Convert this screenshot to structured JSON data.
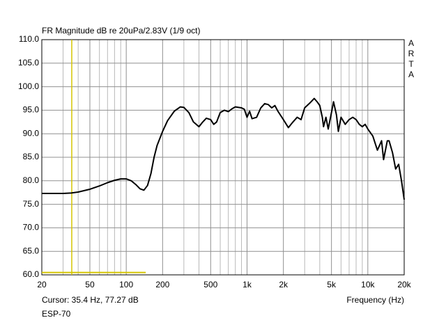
{
  "chart_data": {
    "type": "line",
    "title": "FR Magnitude dB re 20uPa/2.83V (1/9 oct)",
    "side_label": [
      "A",
      "R",
      "T",
      "A"
    ],
    "x_label": "Frequency (Hz)",
    "cursor": {
      "x": 35.4,
      "y": 77.27,
      "label": "Cursor: 35.4 Hz, 77.27 dB",
      "color": "#d4c400"
    },
    "range_marker": {
      "x": [
        20,
        145
      ],
      "y": 60.5,
      "color": "#d4c400"
    },
    "footer": "ESP-70",
    "xlog": true,
    "grid": true,
    "xlim": [
      20,
      20000
    ],
    "ylim": [
      60,
      110
    ],
    "xticks": [
      20,
      50,
      100,
      200,
      500,
      {
        "value": 1000,
        "label": "1k"
      },
      {
        "value": 2000,
        "label": "2k"
      },
      {
        "value": 5000,
        "label": "5k"
      },
      {
        "value": 10000,
        "label": "10k"
      },
      {
        "value": 20000,
        "label": "20k"
      }
    ],
    "xminorticks": [
      30,
      40,
      60,
      70,
      80,
      90,
      300,
      400,
      600,
      700,
      800,
      900,
      3000,
      4000,
      6000,
      7000,
      8000,
      9000
    ],
    "yticks": [
      {
        "value": 60,
        "label": "60.0"
      },
      {
        "value": 65,
        "label": "65.0"
      },
      {
        "value": 70,
        "label": "70.0"
      },
      {
        "value": 75,
        "label": "75.0"
      },
      {
        "value": 80,
        "label": "80.0"
      },
      {
        "value": 85,
        "label": "85.0"
      },
      {
        "value": 90,
        "label": "90.0"
      },
      {
        "value": 95,
        "label": "95.0"
      },
      {
        "value": 100,
        "label": "100.0"
      },
      {
        "value": 105,
        "label": "105.0"
      },
      {
        "value": 110,
        "label": "110.0"
      }
    ],
    "x": [
      20,
      25,
      30,
      35,
      40,
      50,
      60,
      70,
      80,
      90,
      100,
      110,
      120,
      130,
      140,
      150,
      160,
      170,
      180,
      200,
      220,
      250,
      280,
      300,
      330,
      360,
      400,
      430,
      460,
      500,
      530,
      560,
      600,
      650,
      700,
      750,
      800,
      900,
      950,
      1000,
      1050,
      1100,
      1200,
      1300,
      1400,
      1500,
      1600,
      1700,
      1800,
      2000,
      2200,
      2400,
      2600,
      2800,
      3000,
      3300,
      3600,
      3800,
      4000,
      4200,
      4300,
      4500,
      4700,
      5000,
      5200,
      5500,
      5700,
      6000,
      6500,
      7000,
      7500,
      8000,
      8500,
      9000,
      9500,
      10000,
      11000,
      12000,
      13000,
      13500,
      14500,
      15000,
      16000,
      17000,
      18000,
      19000,
      20000
    ],
    "series": [
      {
        "color": "#000000",
        "values": [
          77.3,
          77.3,
          77.3,
          77.4,
          77.6,
          78.2,
          78.9,
          79.6,
          80.1,
          80.4,
          80.4,
          80.0,
          79.2,
          78.3,
          78.0,
          79.0,
          81.5,
          85,
          87.5,
          90.5,
          92.8,
          94.8,
          95.7,
          95.6,
          94.5,
          92.5,
          91.5,
          92.5,
          93.3,
          93.0,
          92.0,
          92.5,
          94.5,
          95.0,
          94.7,
          95.3,
          95.7,
          95.5,
          95.2,
          93.5,
          94.8,
          93.2,
          93.5,
          95.5,
          96.4,
          96.2,
          95.5,
          96.0,
          94.8,
          93.0,
          91.3,
          92.5,
          93.5,
          93.0,
          95.5,
          96.5,
          97.5,
          96.8,
          96.0,
          93.5,
          91.5,
          93.5,
          91.0,
          94.5,
          96.8,
          94.0,
          90.5,
          93.5,
          92.0,
          93.0,
          93.5,
          93.0,
          92.0,
          91.5,
          92.0,
          91.0,
          89.5,
          86.5,
          88.5,
          84.5,
          88.5,
          88.5,
          86.0,
          82.5,
          83.5,
          80.0,
          76.0
        ]
      }
    ]
  }
}
